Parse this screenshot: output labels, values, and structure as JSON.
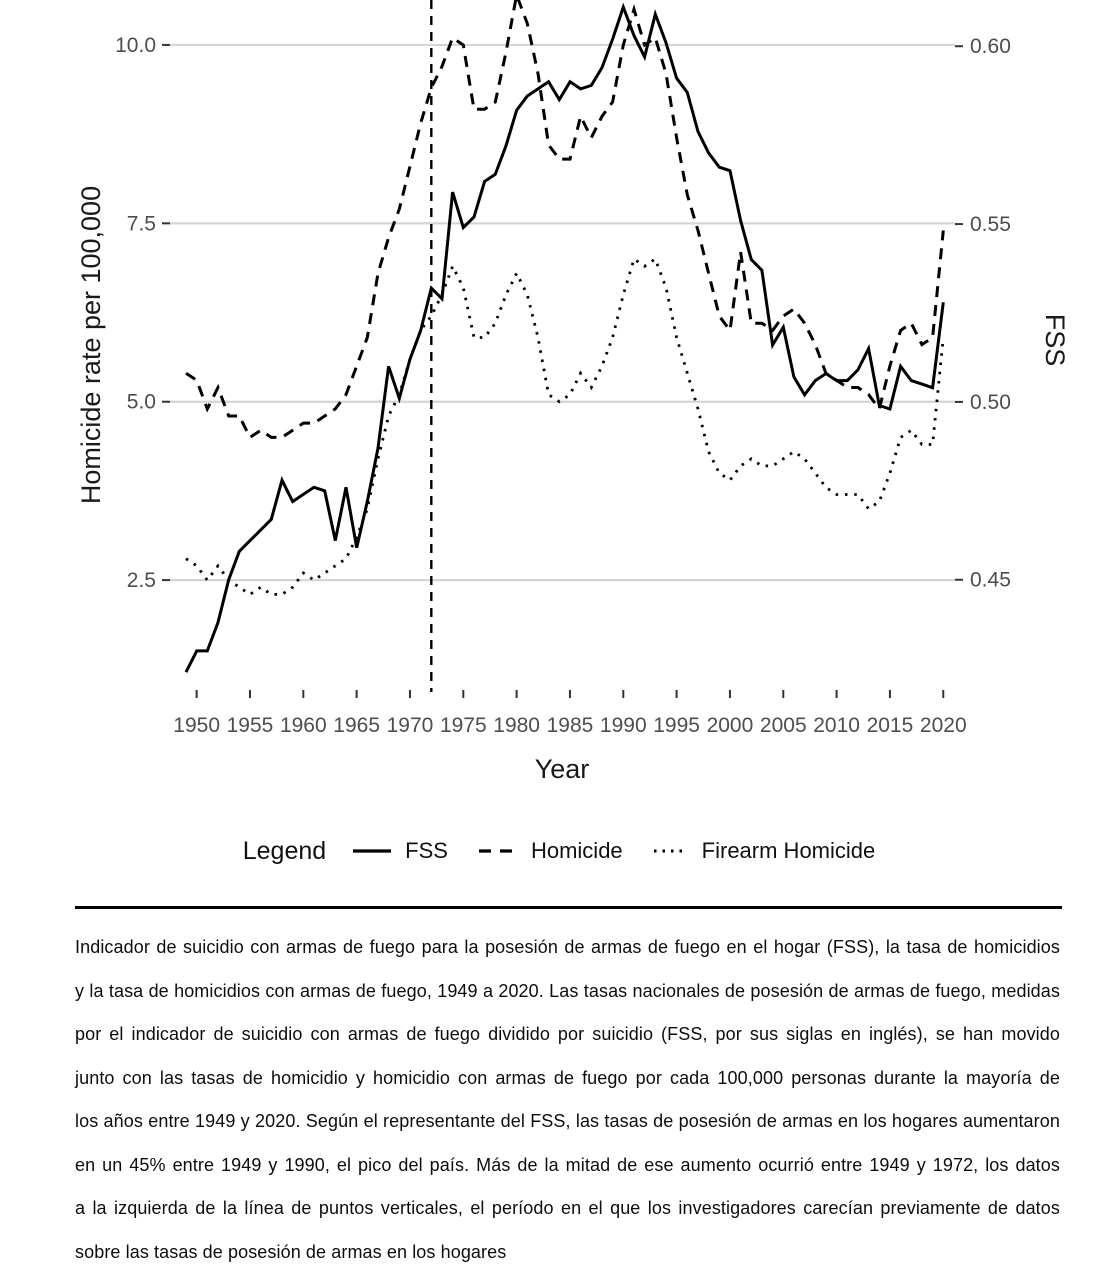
{
  "chart_data": {
    "type": "line",
    "title": "",
    "xlabel": "Year",
    "ylabel": "Homicide rate per 100,000",
    "y2label": "FSS",
    "grid": "horizontal-major",
    "xlim": [
      1947.5,
      2021.1
    ],
    "ylim_left": [
      0.96,
      10.63
    ],
    "ylim_right": [
      0.419,
      0.613
    ],
    "x_ticks": [
      1950,
      1955,
      1960,
      1965,
      1970,
      1975,
      1980,
      1985,
      1990,
      1995,
      2000,
      2005,
      2010,
      2015,
      2020
    ],
    "y_ticks_left": [
      10.0,
      7.5,
      5.0,
      2.5
    ],
    "y_tick_labels_left": [
      "10.0",
      "7.5",
      "5.0",
      "2.5"
    ],
    "y_ticks_right": [
      0.6,
      0.55,
      0.5,
      0.45
    ],
    "y_tick_labels_right": [
      "0.60",
      "0.55",
      "0.50",
      "0.45"
    ],
    "vline": {
      "x": 1972,
      "style": "dashed"
    },
    "legend": {
      "title": "Legend",
      "position": "bottom"
    },
    "years": [
      1949,
      1950,
      1951,
      1952,
      1953,
      1954,
      1955,
      1956,
      1957,
      1958,
      1959,
      1960,
      1961,
      1962,
      1963,
      1964,
      1965,
      1966,
      1967,
      1968,
      1969,
      1970,
      1971,
      1972,
      1973,
      1974,
      1975,
      1976,
      1977,
      1978,
      1979,
      1980,
      1981,
      1982,
      1983,
      1984,
      1985,
      1986,
      1987,
      1988,
      1989,
      1990,
      1991,
      1992,
      1993,
      1994,
      1995,
      1996,
      1997,
      1998,
      1999,
      2000,
      2001,
      2002,
      2003,
      2004,
      2005,
      2006,
      2007,
      2008,
      2009,
      2010,
      2011,
      2012,
      2013,
      2014,
      2015,
      2016,
      2017,
      2018,
      2019,
      2020
    ],
    "series": [
      {
        "name": "FSS",
        "axis": "right",
        "line_style": "solid",
        "values": [
          0.424,
          0.43,
          0.43,
          0.438,
          0.45,
          0.458,
          0.461,
          0.464,
          0.467,
          0.478,
          0.472,
          0.474,
          0.476,
          0.475,
          0.461,
          0.476,
          0.459,
          0.472,
          0.487,
          0.51,
          0.501,
          0.512,
          0.52,
          0.532,
          0.529,
          0.559,
          0.549,
          0.552,
          0.562,
          0.564,
          0.572,
          0.582,
          0.586,
          0.588,
          0.59,
          0.585,
          0.59,
          0.588,
          0.589,
          0.594,
          0.602,
          0.611,
          0.603,
          0.597,
          0.609,
          0.601,
          0.591,
          0.587,
          0.576,
          0.57,
          0.566,
          0.565,
          0.551,
          0.54,
          0.537,
          0.516,
          0.521,
          0.507,
          0.502,
          0.506,
          0.508,
          0.506,
          0.506,
          0.509,
          0.515,
          0.499,
          0.498,
          0.51,
          0.506,
          0.505,
          0.504,
          0.528
        ]
      },
      {
        "name": "Homicide",
        "axis": "left",
        "line_style": "dashed",
        "values": [
          5.4,
          5.3,
          4.9,
          5.2,
          4.8,
          4.8,
          4.5,
          4.6,
          4.5,
          4.5,
          4.6,
          4.7,
          4.7,
          4.8,
          4.9,
          5.1,
          5.5,
          5.9,
          6.8,
          7.3,
          7.7,
          8.3,
          8.9,
          9.4,
          9.7,
          10.1,
          10.0,
          9.1,
          9.1,
          9.2,
          9.9,
          10.7,
          10.3,
          9.6,
          8.6,
          8.4,
          8.4,
          9.0,
          8.7,
          9.0,
          9.2,
          10.0,
          10.5,
          10.0,
          10.1,
          9.6,
          8.7,
          7.9,
          7.4,
          6.8,
          6.2,
          6.0,
          7.1,
          6.1,
          6.1,
          6.0,
          6.2,
          6.3,
          6.1,
          5.8,
          5.4,
          5.3,
          5.2,
          5.2,
          5.1,
          4.9,
          5.5,
          6.0,
          6.1,
          5.8,
          5.9,
          7.4
        ]
      },
      {
        "name": "Firearm Homicide",
        "axis": "left",
        "line_style": "dotted",
        "values": [
          2.8,
          2.7,
          2.5,
          2.7,
          2.5,
          2.4,
          2.3,
          2.4,
          2.3,
          2.3,
          2.4,
          2.6,
          2.5,
          2.6,
          2.7,
          2.8,
          3.1,
          3.5,
          4.2,
          4.8,
          5.1,
          5.6,
          6.0,
          6.2,
          6.5,
          6.9,
          6.6,
          5.9,
          5.9,
          6.1,
          6.5,
          6.8,
          6.5,
          5.9,
          5.1,
          5.0,
          5.1,
          5.4,
          5.2,
          5.5,
          5.9,
          6.5,
          7.0,
          6.9,
          7.0,
          6.6,
          5.9,
          5.4,
          4.9,
          4.3,
          4.0,
          3.9,
          4.1,
          4.2,
          4.1,
          4.1,
          4.2,
          4.3,
          4.2,
          4.0,
          3.8,
          3.7,
          3.7,
          3.7,
          3.5,
          3.6,
          4.0,
          4.5,
          4.6,
          4.4,
          4.4,
          5.9
        ]
      }
    ]
  },
  "caption": {
    "lines": [
      "Indicador de suicidio con armas de fuego para la posesión de armas de fuego en el hogar (FSS), la tasa de homicidios",
      "y la tasa de homicidios con armas de fuego, 1949 a 2020. Las tasas nacionales de posesión de armas de fuego, medidas",
      "por el indicador de suicidio con armas de fuego dividido por suicidio (FSS, por sus siglas en inglés), se han movido",
      "junto con las tasas de homicidio y homicidio con armas de fuego por cada 100,000 personas durante la mayoría de",
      "los años entre 1949 y 2020. Según el representante del FSS, las tasas de posesión de armas en los hogares aumentaron",
      "en un 45% entre 1949 y 1990, el pico del país. Más de la mitad de ese aumento ocurrió entre 1949 y 1972, los datos",
      "a la izquierda de la línea de puntos verticales, el período en el que los investigadores carecían previamente de datos",
      "sobre las tasas de posesión de armas en los hogares"
    ]
  }
}
